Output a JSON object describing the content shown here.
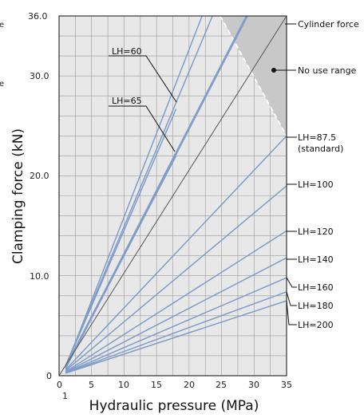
{
  "edge_texts": {
    "left_top": "e",
    "left_mid": "e"
  },
  "chart_data": {
    "type": "line",
    "xlabel": "Hydraulic pressure (MPa)",
    "ylabel": "Clamping force (kN)",
    "xlim": [
      0,
      35
    ],
    "ylim": [
      0,
      36
    ],
    "x_ticks": [
      "0",
      "5",
      "10",
      "15",
      "20",
      "25",
      "30",
      "35"
    ],
    "x_tick_sub": "1",
    "y_ticks": [
      "0",
      "10.0",
      "20.0",
      "30.0",
      "36.0"
    ],
    "grid": true,
    "colors": {
      "lh_lines": "#7f9cc9",
      "cylinder_line": "#555555",
      "no_use_fill": "#c8c8c8",
      "plot_bg": "#e8e8e8",
      "grid": "#9a9a9a"
    },
    "series": [
      {
        "name": "LH=60",
        "points": [
          [
            1,
            0.9
          ],
          [
            18,
            26.7
          ]
        ]
      },
      {
        "name": "LH=65",
        "points": [
          [
            1,
            0.8
          ],
          [
            18,
            22.0
          ]
        ]
      },
      {
        "name": "LH=87.5",
        "points": [
          [
            1,
            0.6
          ],
          [
            35,
            24.0
          ]
        ]
      },
      {
        "name": "LH=100",
        "points": [
          [
            1,
            0.5
          ],
          [
            35,
            19.0
          ]
        ]
      },
      {
        "name": "LH=120",
        "points": [
          [
            1,
            0.4
          ],
          [
            35,
            14.5
          ]
        ]
      },
      {
        "name": "LH=140",
        "points": [
          [
            1,
            0.35
          ],
          [
            35,
            11.8
          ]
        ]
      },
      {
        "name": "LH=160",
        "points": [
          [
            1,
            0.3
          ],
          [
            35,
            9.8
          ]
        ]
      },
      {
        "name": "LH=180",
        "points": [
          [
            1,
            0.28
          ],
          [
            35,
            8.4
          ]
        ]
      },
      {
        "name": "LH=200",
        "points": [
          [
            1,
            0.25
          ],
          [
            35,
            7.5
          ]
        ]
      }
    ],
    "steep_lines": [
      {
        "points": [
          [
            1,
            1.0
          ],
          [
            23.6,
            36.0
          ]
        ]
      },
      {
        "points": [
          [
            1,
            0.9
          ],
          [
            28.8,
            36.0
          ]
        ]
      },
      {
        "points": [
          [
            1,
            0.8
          ],
          [
            22,
            36.0
          ]
        ]
      },
      {
        "points": [
          [
            1,
            0.7
          ],
          [
            29,
            36.0
          ]
        ]
      }
    ],
    "cylinder_force": {
      "name": "Cylinder force",
      "points": [
        [
          0,
          0
        ],
        [
          35,
          36.0
        ]
      ]
    },
    "no_use_range": {
      "name": "No use range",
      "polygon": [
        [
          24.8,
          36.0
        ],
        [
          35,
          36.0
        ],
        [
          35,
          24.0
        ]
      ]
    },
    "annotations": {
      "lh60": "LH=60",
      "lh65": "LH=65",
      "cylinder": "Cylinder force",
      "no_use": "No use range",
      "lh875_a": "LH=87.5",
      "lh875_b": "(standard)",
      "lh100": "LH=100",
      "lh120": "LH=120",
      "lh140": "LH=140",
      "lh160": "LH=160",
      "lh180": "LH=180",
      "lh200": "LH=200"
    }
  }
}
